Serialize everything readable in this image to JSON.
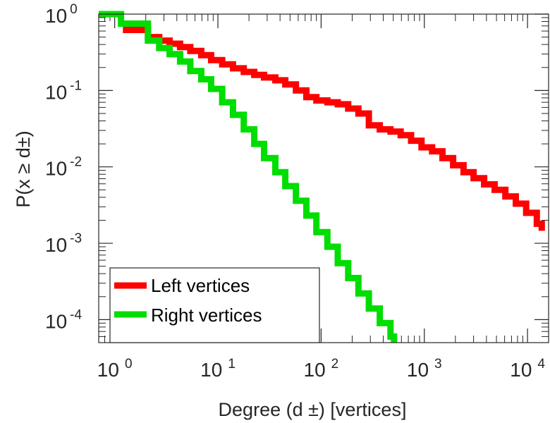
{
  "chart_data": {
    "type": "line",
    "xscale": "log",
    "yscale": "log",
    "xlim": [
      0.7,
      16000
    ],
    "ylim": [
      5e-05,
      1
    ],
    "xlabel": "Degree (d ±) [vertices]",
    "ylabel": "P(x ≥ d±)",
    "xticks": [
      {
        "base": "10",
        "exp": "0",
        "value": 1
      },
      {
        "base": "10",
        "exp": "1",
        "value": 10
      },
      {
        "base": "10",
        "exp": "2",
        "value": 100
      },
      {
        "base": "10",
        "exp": "3",
        "value": 1000
      },
      {
        "base": "10",
        "exp": "4",
        "value": 10000
      }
    ],
    "yticks": [
      {
        "base": "10",
        "exp": "0",
        "value": 1
      },
      {
        "base": "10",
        "exp": "-1",
        "value": 0.1
      },
      {
        "base": "10",
        "exp": "-2",
        "value": 0.01
      },
      {
        "base": "10",
        "exp": "-3",
        "value": 0.001
      },
      {
        "base": "10",
        "exp": "-4",
        "value": 0.0001
      }
    ],
    "grid": false,
    "legend_position": "bottom-left",
    "series": [
      {
        "name": "Left vertices",
        "color": "#ff0000",
        "step": true,
        "x": [
          1.2,
          2.1,
          2.7,
          3.4,
          4.3,
          5.4,
          6.9,
          8.6,
          11,
          14,
          17.8,
          22.5,
          28,
          36,
          45,
          57,
          72,
          90,
          115,
          145,
          183,
          230,
          290,
          370,
          470,
          590,
          745,
          940,
          1190,
          1500,
          1900,
          2400,
          3000,
          3800,
          4800,
          6100,
          7700,
          9700,
          12300
        ],
        "y": [
          0.62,
          0.5,
          0.45,
          0.41,
          0.37,
          0.33,
          0.29,
          0.25,
          0.22,
          0.195,
          0.175,
          0.16,
          0.148,
          0.136,
          0.12,
          0.1,
          0.082,
          0.074,
          0.07,
          0.066,
          0.058,
          0.05,
          0.035,
          0.031,
          0.029,
          0.026,
          0.022,
          0.018,
          0.016,
          0.013,
          0.0105,
          0.0085,
          0.0071,
          0.0059,
          0.005,
          0.0041,
          0.0033,
          0.0025,
          0.0018
        ]
      },
      {
        "name": "Right vertices",
        "color": "#00dd00",
        "step": true,
        "x": [
          0.7,
          1.15,
          2.1,
          2.7,
          3.4,
          4.3,
          5.4,
          6.9,
          8.6,
          11,
          14,
          17.8,
          22.5,
          28,
          36,
          45,
          57,
          72,
          90,
          115,
          145,
          183,
          230,
          290,
          370,
          470
        ],
        "y": [
          1,
          0.75,
          0.45,
          0.36,
          0.3,
          0.24,
          0.18,
          0.14,
          0.105,
          0.07,
          0.048,
          0.031,
          0.02,
          0.013,
          0.0085,
          0.0056,
          0.0036,
          0.0023,
          0.0014,
          0.0009,
          0.00055,
          0.00035,
          0.00022,
          0.00014,
          9e-05,
          6e-05
        ]
      }
    ]
  }
}
